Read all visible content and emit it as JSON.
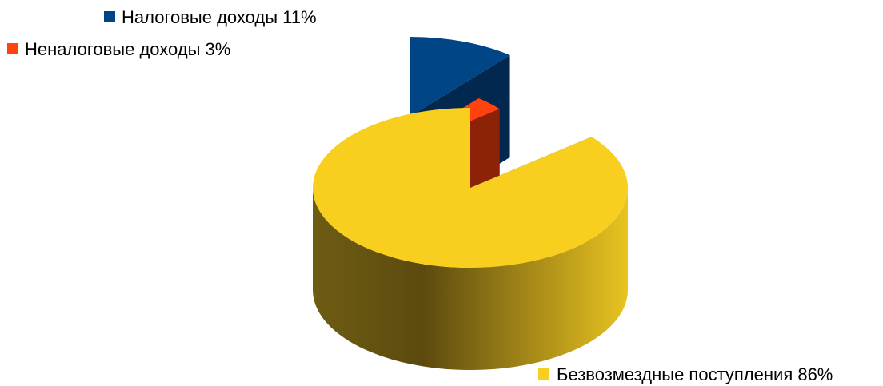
{
  "chart_data": {
    "type": "pie",
    "style": "3d-exploded",
    "legend": "inline-labels",
    "slices": [
      {
        "name": "Налоговые доходы",
        "value": 11,
        "label": "Налоговые доходы 11%",
        "color": "#004586"
      },
      {
        "name": "Неналоговые доходы",
        "value": 3,
        "label": "Неналоговые доходы 3%",
        "color": "#ff420e"
      },
      {
        "name": "Безвозмездные поступления",
        "value": 86,
        "label": "Безвозмездные поступления 86%",
        "color": "#f8cf1f"
      }
    ]
  }
}
